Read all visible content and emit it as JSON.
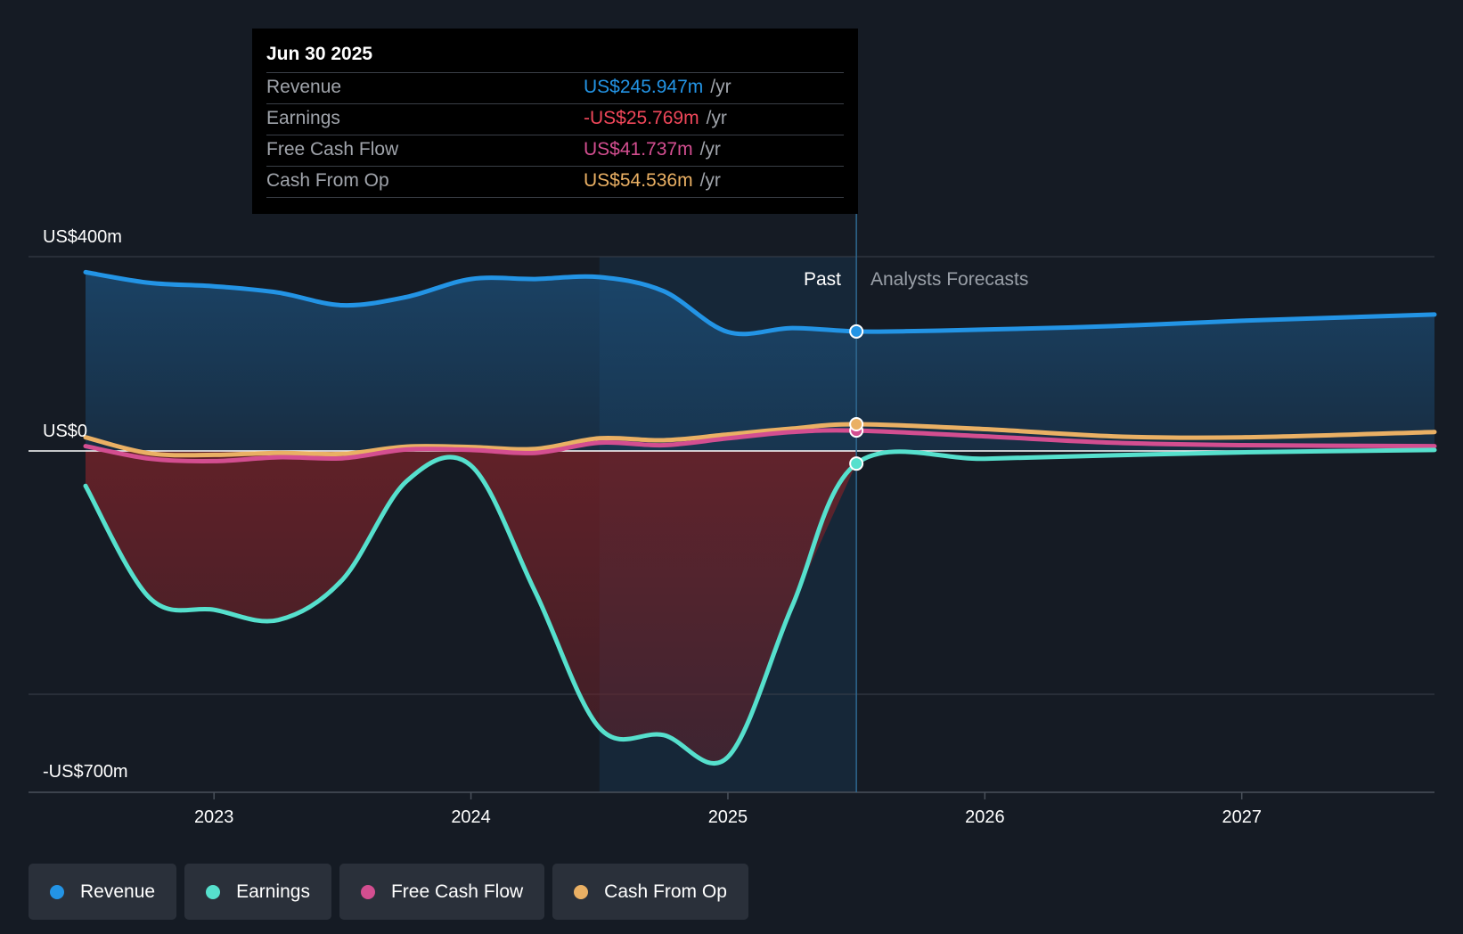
{
  "chart_data": {
    "type": "line",
    "y_axis": {
      "top_label": "US$400m",
      "zero_label": "US$0",
      "bottom_label": "-US$700m",
      "ylim": [
        -700,
        400
      ]
    },
    "x_ticks": [
      "2023",
      "2024",
      "2025",
      "2026",
      "2027"
    ],
    "x_range": [
      2022.5,
      2027.75
    ],
    "past_label": "Past",
    "forecast_label": "Analysts Forecasts",
    "past_shade_start": 2024.5,
    "divider_x": 2025.5,
    "series": [
      {
        "name": "Revenue",
        "color": "#2394e5",
        "points": [
          [
            2022.5,
            368
          ],
          [
            2022.75,
            346
          ],
          [
            2023.0,
            339
          ],
          [
            2023.25,
            326
          ],
          [
            2023.5,
            300
          ],
          [
            2023.75,
            317
          ],
          [
            2024.0,
            354
          ],
          [
            2024.25,
            354
          ],
          [
            2024.5,
            358
          ],
          [
            2024.75,
            329
          ],
          [
            2025.0,
            245
          ],
          [
            2025.25,
            253
          ],
          [
            2025.5,
            246
          ]
        ],
        "forecast": [
          [
            2025.5,
            246
          ],
          [
            2025.75,
            247
          ],
          [
            2026.0,
            250
          ],
          [
            2026.5,
            257
          ],
          [
            2027.0,
            268
          ],
          [
            2027.75,
            281
          ]
        ]
      },
      {
        "name": "Earnings",
        "color": "#56e0cd",
        "points": [
          [
            2022.5,
            -72
          ],
          [
            2022.75,
            -303
          ],
          [
            2023.0,
            -327
          ],
          [
            2023.25,
            -348
          ],
          [
            2023.5,
            -265
          ],
          [
            2023.75,
            -62
          ],
          [
            2024.0,
            -30
          ],
          [
            2024.25,
            -290
          ],
          [
            2024.5,
            -570
          ],
          [
            2024.75,
            -585
          ],
          [
            2025.0,
            -630
          ],
          [
            2025.25,
            -320
          ],
          [
            2025.5,
            -26
          ]
        ],
        "forecast": [
          [
            2025.5,
            -26
          ],
          [
            2026.0,
            -16
          ],
          [
            2026.5,
            -9
          ],
          [
            2027.0,
            -3
          ],
          [
            2027.75,
            2
          ]
        ]
      },
      {
        "name": "Free Cash Flow",
        "color": "#d34e90",
        "points": [
          [
            2022.5,
            10
          ],
          [
            2022.75,
            -16
          ],
          [
            2023.0,
            -21
          ],
          [
            2023.25,
            -13
          ],
          [
            2023.5,
            -15
          ],
          [
            2023.75,
            3
          ],
          [
            2024.0,
            2
          ],
          [
            2024.25,
            -4
          ],
          [
            2024.5,
            17
          ],
          [
            2024.75,
            12
          ],
          [
            2025.0,
            26
          ],
          [
            2025.25,
            39
          ],
          [
            2025.5,
            42
          ]
        ],
        "forecast": [
          [
            2025.5,
            42
          ],
          [
            2026.0,
            30
          ],
          [
            2026.5,
            17
          ],
          [
            2027.0,
            12
          ],
          [
            2027.75,
            10
          ]
        ]
      },
      {
        "name": "Cash From Op",
        "color": "#eab064",
        "points": [
          [
            2022.5,
            28
          ],
          [
            2022.75,
            -5
          ],
          [
            2023.0,
            -8
          ],
          [
            2023.25,
            -4
          ],
          [
            2023.5,
            -6
          ],
          [
            2023.75,
            9
          ],
          [
            2024.0,
            8
          ],
          [
            2024.25,
            4
          ],
          [
            2024.5,
            26
          ],
          [
            2024.75,
            22
          ],
          [
            2025.0,
            34
          ],
          [
            2025.25,
            46
          ],
          [
            2025.5,
            55
          ]
        ],
        "forecast": [
          [
            2025.5,
            55
          ],
          [
            2026.0,
            45
          ],
          [
            2026.5,
            30
          ],
          [
            2027.0,
            28
          ],
          [
            2027.75,
            39
          ]
        ]
      }
    ]
  },
  "tooltip": {
    "date": "Jun 30 2025",
    "rows": [
      {
        "name": "Revenue",
        "value": "US$245.947m",
        "unit": "/yr",
        "color": "#2394e5"
      },
      {
        "name": "Earnings",
        "value": "-US$25.769m",
        "unit": "/yr",
        "color": "#f0475a"
      },
      {
        "name": "Free Cash Flow",
        "value": "US$41.737m",
        "unit": "/yr",
        "color": "#d34e90"
      },
      {
        "name": "Cash From Op",
        "value": "US$54.536m",
        "unit": "/yr",
        "color": "#eab064"
      }
    ]
  },
  "legend": [
    {
      "label": "Revenue",
      "color": "#2394e5"
    },
    {
      "label": "Earnings",
      "color": "#56e0cd"
    },
    {
      "label": "Free Cash Flow",
      "color": "#d34e90"
    },
    {
      "label": "Cash From Op",
      "color": "#eab064"
    }
  ]
}
